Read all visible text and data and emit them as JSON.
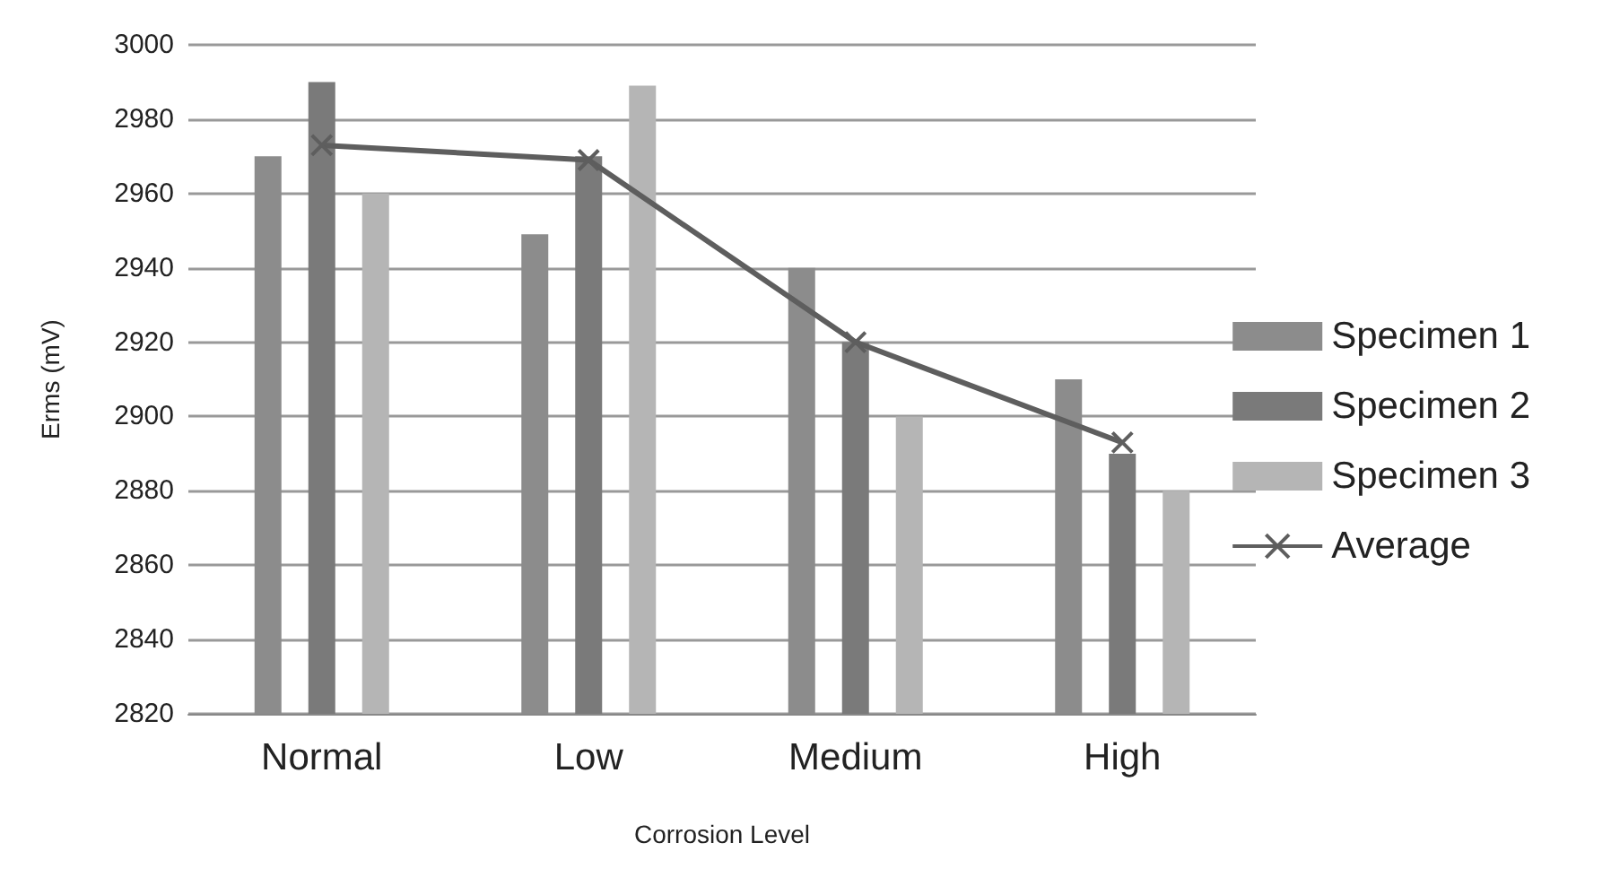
{
  "chart_data": {
    "type": "bar",
    "xlabel": "Corrosion Level",
    "ylabel": "Erms (mV)",
    "categories": [
      "Normal",
      "Low",
      "Medium",
      "High"
    ],
    "series": [
      {
        "name": "Specimen 1",
        "color": "#8c8c8c",
        "values": [
          2970,
          2949,
          2940,
          2910
        ]
      },
      {
        "name": "Specimen 2",
        "color": "#7a7a7a",
        "values": [
          2990,
          2970,
          2920,
          2890
        ]
      },
      {
        "name": "Specimen 3",
        "color": "#b5b5b5",
        "values": [
          2960,
          2989,
          2900,
          2880
        ]
      },
      {
        "name": "Average",
        "type": "line",
        "color": "#5e5e5e",
        "marker": "cross",
        "values": [
          2973,
          2969,
          2920,
          2893
        ]
      }
    ],
    "ylim": [
      2820,
      3000
    ],
    "yticks": [
      2820,
      2840,
      2860,
      2880,
      2900,
      2920,
      2940,
      2960,
      2980,
      3000
    ],
    "grid": "y",
    "legend": "right"
  }
}
